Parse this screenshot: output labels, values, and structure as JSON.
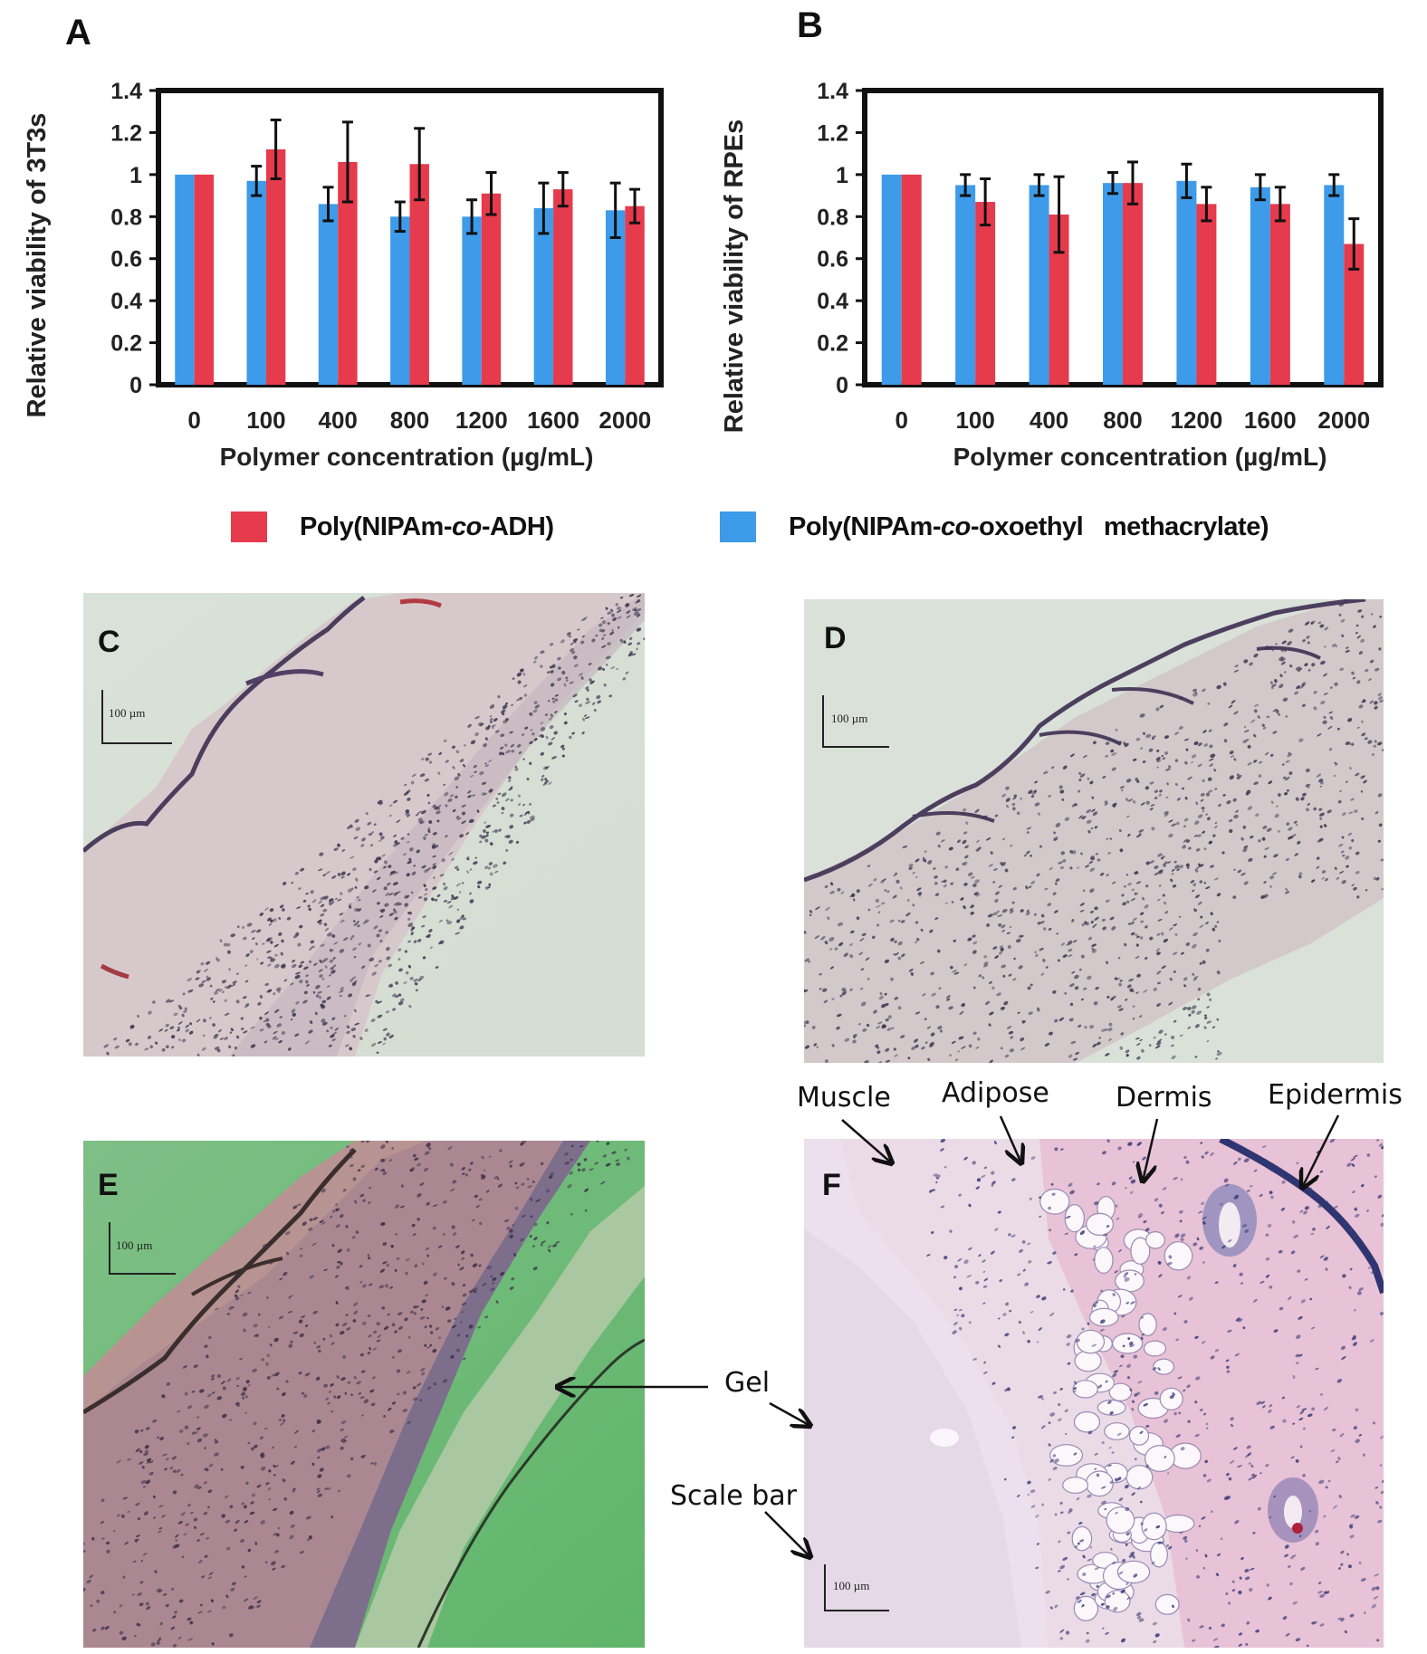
{
  "panels": {
    "A": "A",
    "B": "B",
    "C": "C",
    "D": "D",
    "E": "E",
    "F": "F"
  },
  "chart_data": [
    {
      "type": "bar",
      "panel": "A",
      "ylabel": "Relative viability of 3T3s",
      "xlabel": "Polymer concentration (µg/mL)",
      "categories": [
        "0",
        "100",
        "400",
        "800",
        "1200",
        "1600",
        "2000"
      ],
      "ylim": [
        0,
        1.4
      ],
      "yticks": [
        "0",
        "0.2",
        "0.4",
        "0.6",
        "0.8",
        "1",
        "1.2",
        "1.4"
      ],
      "grid": false,
      "series": [
        {
          "name": "Poly(NIPAm-co-oxoethyl methacrylate)",
          "color": "#3d9be9",
          "values": [
            1.0,
            0.97,
            0.86,
            0.8,
            0.8,
            0.84,
            0.83
          ],
          "errors": [
            0,
            0.07,
            0.08,
            0.07,
            0.08,
            0.12,
            0.13
          ]
        },
        {
          "name": "Poly(NIPAm-co-ADH)",
          "color": "#e63a4d",
          "values": [
            1.0,
            1.12,
            1.06,
            1.05,
            0.91,
            0.93,
            0.85
          ],
          "errors": [
            0,
            0.14,
            0.19,
            0.17,
            0.1,
            0.08,
            0.08
          ]
        }
      ]
    },
    {
      "type": "bar",
      "panel": "B",
      "ylabel": "Relative viability of RPEs",
      "xlabel": "Polymer concentration (µg/mL)",
      "categories": [
        "0",
        "100",
        "400",
        "800",
        "1200",
        "1600",
        "2000"
      ],
      "ylim": [
        0,
        1.4
      ],
      "yticks": [
        "0",
        "0.2",
        "0.4",
        "0.6",
        "0.8",
        "1",
        "1.2",
        "1.4"
      ],
      "grid": false,
      "series": [
        {
          "name": "Poly(NIPAm-co-oxoethyl methacrylate)",
          "color": "#3d9be9",
          "values": [
            1.0,
            0.95,
            0.95,
            0.96,
            0.97,
            0.94,
            0.95
          ],
          "errors": [
            0,
            0.05,
            0.05,
            0.05,
            0.08,
            0.06,
            0.05
          ]
        },
        {
          "name": "Poly(NIPAm-co-ADH)",
          "color": "#e63a4d",
          "values": [
            1.0,
            0.87,
            0.81,
            0.96,
            0.86,
            0.86,
            0.67
          ],
          "errors": [
            0,
            0.11,
            0.18,
            0.1,
            0.08,
            0.08,
            0.12
          ]
        }
      ]
    }
  ],
  "legend": {
    "position": "below charts",
    "adh_prefix": "Poly(NIPAm-",
    "adh_italic": "co",
    "adh_suffix": "-ADH)",
    "oxo_prefix": "Poly(NIPAm-",
    "oxo_italic": "co",
    "oxo_suffix": "-oxoethyl   methacrylate)"
  },
  "scale_bars": {
    "C": "100 µm",
    "D": "100 µm",
    "E": "100 µm",
    "F": "100 µm"
  },
  "annotations": {
    "muscle": "Muscle",
    "adipose": "Adipose",
    "dermis": "Dermis",
    "epidermis": "Epidermis",
    "gel": "Gel",
    "scale_bar": "Scale bar"
  }
}
